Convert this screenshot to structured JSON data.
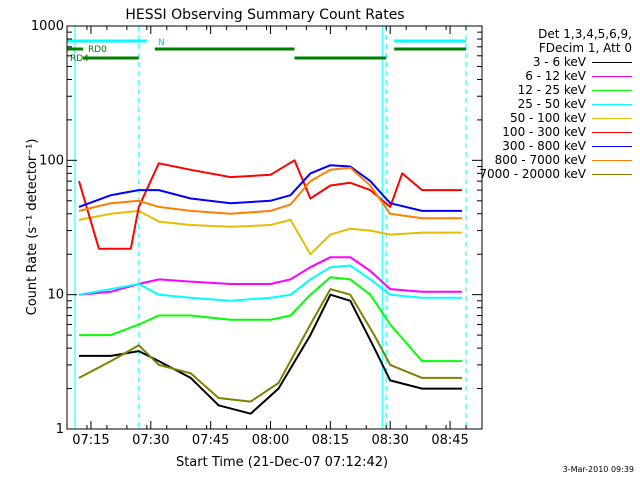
{
  "chart_data": {
    "type": "line",
    "title": "HESSI Observing Summary Count Rates",
    "xlabel": "Start Time (21-Dec-07 07:12:42)",
    "ylabel": "Count Rate (s⁻¹ detector⁻¹)",
    "y_scale": "log",
    "ylim": [
      1,
      1000
    ],
    "xlim": [
      "07:09",
      "08:53"
    ],
    "x_ticks": [
      "07:15",
      "07:30",
      "07:45",
      "08:00",
      "08:15",
      "08:30",
      "08:45"
    ],
    "y_ticks": [
      "1",
      "10",
      "100",
      "1000"
    ],
    "legend_header": [
      "Det 1,3,4,5,6,9,",
      "FDecim 1, Att 0"
    ],
    "legend_placement": "top-right",
    "flags": [
      {
        "name": "N",
        "color": "#00ffff",
        "segments": [
          [
            "07:09",
            "07:29"
          ],
          [
            "08:31",
            "08:49"
          ]
        ]
      },
      {
        "name": "RD0",
        "color": "#008000",
        "segments": [
          [
            "07:09",
            "07:13"
          ],
          [
            "07:31",
            "08:06"
          ],
          [
            "08:31",
            "08:49"
          ]
        ]
      },
      {
        "name": "RD4",
        "color": "#008000",
        "segments": [
          [
            "07:13",
            "07:27"
          ],
          [
            "08:06",
            "08:29"
          ]
        ]
      }
    ],
    "flag_labels": [
      "N",
      "RD0",
      "RD4"
    ],
    "dashed_lines": [
      "07:27",
      "08:29",
      "08:49"
    ],
    "solid_lines": [
      "07:11",
      "08:28"
    ],
    "series": [
      {
        "name": "3 - 6 keV",
        "color": "#000000",
        "points": [
          [
            "07:12",
            3.5
          ],
          [
            "07:20",
            3.5
          ],
          [
            "07:27",
            3.8
          ],
          [
            "07:32",
            3.2
          ],
          [
            "07:40",
            2.4
          ],
          [
            "07:47",
            1.5
          ],
          [
            "07:55",
            1.3
          ],
          [
            "08:02",
            2.0
          ],
          [
            "08:10",
            5
          ],
          [
            "08:15",
            10
          ],
          [
            "08:20",
            9
          ],
          [
            "08:26",
            4
          ],
          [
            "08:30",
            2.3
          ],
          [
            "08:38",
            2.0
          ],
          [
            "08:48",
            2.0
          ]
        ]
      },
      {
        "name": "6 - 12 keV",
        "color": "#ff00ff",
        "points": [
          [
            "07:12",
            10
          ],
          [
            "07:20",
            10.5
          ],
          [
            "07:27",
            12
          ],
          [
            "07:32",
            13
          ],
          [
            "07:40",
            12.5
          ],
          [
            "07:50",
            12
          ],
          [
            "08:00",
            12
          ],
          [
            "08:05",
            13
          ],
          [
            "08:10",
            16
          ],
          [
            "08:15",
            19
          ],
          [
            "08:20",
            19
          ],
          [
            "08:25",
            15
          ],
          [
            "08:30",
            11
          ],
          [
            "08:38",
            10.5
          ],
          [
            "08:48",
            10.5
          ]
        ]
      },
      {
        "name": "12 - 25 keV",
        "color": "#00ff00",
        "points": [
          [
            "07:12",
            5
          ],
          [
            "07:20",
            5
          ],
          [
            "07:27",
            6
          ],
          [
            "07:32",
            7
          ],
          [
            "07:40",
            7
          ],
          [
            "07:50",
            6.5
          ],
          [
            "08:00",
            6.5
          ],
          [
            "08:05",
            7
          ],
          [
            "08:10",
            10
          ],
          [
            "08:15",
            13.5
          ],
          [
            "08:20",
            13
          ],
          [
            "08:25",
            10
          ],
          [
            "08:30",
            6
          ],
          [
            "08:38",
            3.2
          ],
          [
            "08:48",
            3.2
          ]
        ]
      },
      {
        "name": "25 - 50 keV",
        "color": "#00ffff",
        "points": [
          [
            "07:12",
            10
          ],
          [
            "07:20",
            11
          ],
          [
            "07:27",
            12
          ],
          [
            "07:32",
            10
          ],
          [
            "07:40",
            9.5
          ],
          [
            "07:50",
            9
          ],
          [
            "08:00",
            9.5
          ],
          [
            "08:05",
            10
          ],
          [
            "08:10",
            13
          ],
          [
            "08:15",
            16
          ],
          [
            "08:20",
            16.5
          ],
          [
            "08:25",
            13
          ],
          [
            "08:30",
            10
          ],
          [
            "08:38",
            9.5
          ],
          [
            "08:48",
            9.5
          ]
        ]
      },
      {
        "name": "50 - 100 keV",
        "color": "#e0c000",
        "points": [
          [
            "07:12",
            36
          ],
          [
            "07:20",
            40
          ],
          [
            "07:27",
            42
          ],
          [
            "07:32",
            35
          ],
          [
            "07:40",
            33
          ],
          [
            "07:50",
            32
          ],
          [
            "08:00",
            33
          ],
          [
            "08:05",
            36
          ],
          [
            "08:10",
            20
          ],
          [
            "08:15",
            28
          ],
          [
            "08:20",
            31
          ],
          [
            "08:25",
            30
          ],
          [
            "08:30",
            28
          ],
          [
            "08:38",
            29
          ],
          [
            "08:48",
            29
          ]
        ]
      },
      {
        "name": "100 - 300 keV",
        "color": "#ff0000",
        "points": [
          [
            "07:12",
            70
          ],
          [
            "07:17",
            22
          ],
          [
            "07:25",
            22
          ],
          [
            "07:27",
            45
          ],
          [
            "07:32",
            95
          ],
          [
            "07:40",
            85
          ],
          [
            "07:50",
            75
          ],
          [
            "08:00",
            78
          ],
          [
            "08:06",
            100
          ],
          [
            "08:10",
            52
          ],
          [
            "08:15",
            65
          ],
          [
            "08:20",
            68
          ],
          [
            "08:25",
            60
          ],
          [
            "08:30",
            45
          ],
          [
            "08:33",
            80
          ],
          [
            "08:38",
            60
          ],
          [
            "08:48",
            60
          ]
        ]
      },
      {
        "name": "300 - 800 keV",
        "color": "#0000ff",
        "points": [
          [
            "07:12",
            45
          ],
          [
            "07:20",
            55
          ],
          [
            "07:27",
            60
          ],
          [
            "07:32",
            60
          ],
          [
            "07:40",
            52
          ],
          [
            "07:50",
            48
          ],
          [
            "08:00",
            50
          ],
          [
            "08:05",
            55
          ],
          [
            "08:10",
            80
          ],
          [
            "08:15",
            92
          ],
          [
            "08:20",
            90
          ],
          [
            "08:25",
            70
          ],
          [
            "08:30",
            48
          ],
          [
            "08:38",
            42
          ],
          [
            "08:48",
            42
          ]
        ]
      },
      {
        "name": "800 - 7000 keV",
        "color": "#ff8000",
        "points": [
          [
            "07:12",
            42
          ],
          [
            "07:20",
            48
          ],
          [
            "07:27",
            50
          ],
          [
            "07:32",
            45
          ],
          [
            "07:40",
            42
          ],
          [
            "07:50",
            40
          ],
          [
            "08:00",
            42
          ],
          [
            "08:05",
            47
          ],
          [
            "08:10",
            70
          ],
          [
            "08:15",
            85
          ],
          [
            "08:20",
            88
          ],
          [
            "08:25",
            65
          ],
          [
            "08:30",
            40
          ],
          [
            "08:38",
            37
          ],
          [
            "08:48",
            37
          ]
        ]
      },
      {
        "name": "7000 - 20000 keV",
        "color": "#808000",
        "points": [
          [
            "07:12",
            2.4
          ],
          [
            "07:20",
            3.2
          ],
          [
            "07:27",
            4.2
          ],
          [
            "07:32",
            3.0
          ],
          [
            "07:40",
            2.6
          ],
          [
            "07:47",
            1.7
          ],
          [
            "07:55",
            1.6
          ],
          [
            "08:02",
            2.2
          ],
          [
            "08:10",
            6
          ],
          [
            "08:15",
            11
          ],
          [
            "08:20",
            10
          ],
          [
            "08:26",
            5
          ],
          [
            "08:30",
            3
          ],
          [
            "08:38",
            2.4
          ],
          [
            "08:48",
            2.4
          ]
        ]
      }
    ]
  },
  "footer": {
    "stamp": "3-Mar-2010 09:39"
  }
}
